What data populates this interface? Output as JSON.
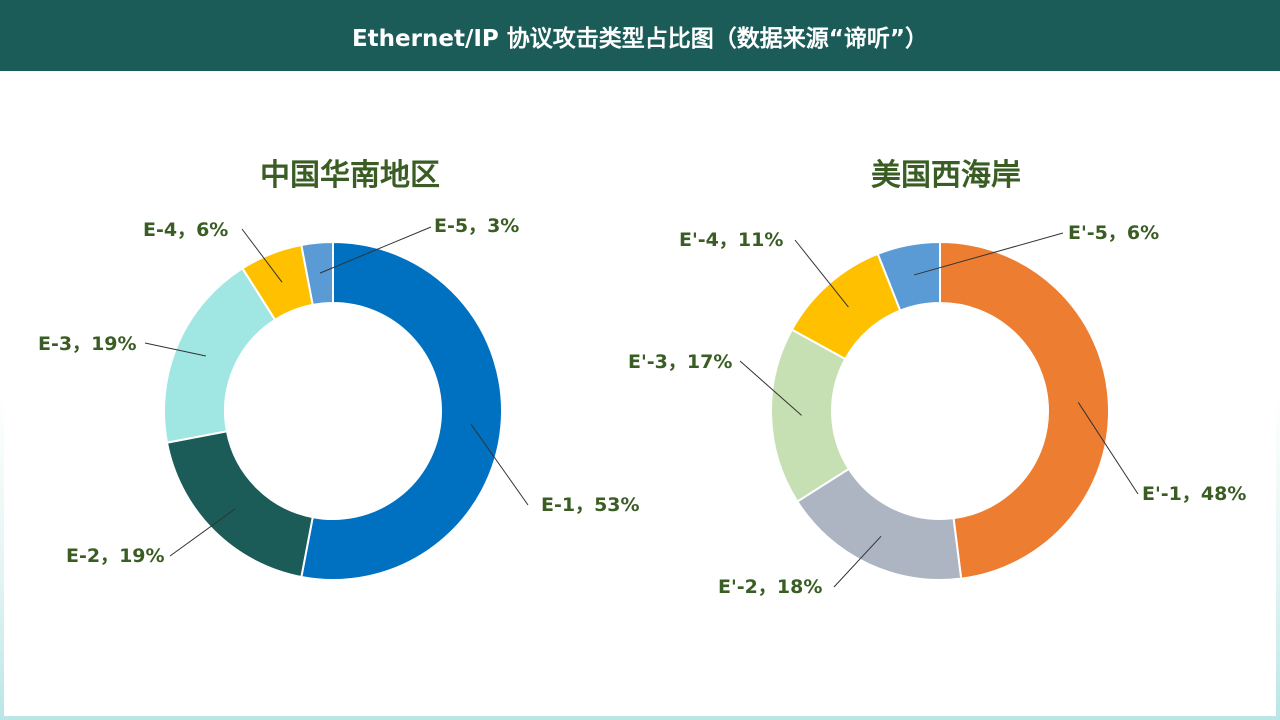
{
  "header": {
    "title": "Ethernet/IP 协议攻击类型占比图（数据来源“谛听”）"
  },
  "chart_data": [
    {
      "type": "pie",
      "title": "中国华南地区",
      "labels": [
        "E-1",
        "E-2",
        "E-3",
        "E-4",
        "E-5"
      ],
      "values": [
        53,
        19,
        19,
        6,
        3
      ],
      "colors": [
        "#0070c0",
        "#1b5c59",
        "#a0e6e2",
        "#ffc000",
        "#5b9bd5"
      ],
      "label_texts": [
        "E-1，53%",
        "E-2，19%",
        "E-3，19%",
        "E-4，6%",
        "E-5，3%"
      ]
    },
    {
      "type": "pie",
      "title": "美国西海岸",
      "labels": [
        "E'-1",
        "E'-2",
        "E'-3",
        "E'-4",
        "E'-5"
      ],
      "values": [
        48,
        18,
        17,
        11,
        6
      ],
      "colors": [
        "#ed7d31",
        "#adb5c2",
        "#c6e0b4",
        "#ffc000",
        "#5b9bd5"
      ],
      "label_texts": [
        "E'-1，48%",
        "E'-2，18%",
        "E'-3，17%",
        "E'-4，11%",
        "E'-5，6%"
      ]
    }
  ]
}
